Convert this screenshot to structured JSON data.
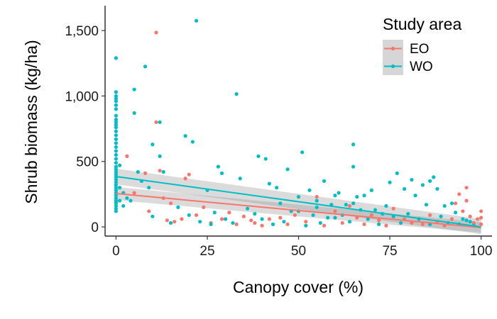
{
  "chart_data": {
    "type": "scatter",
    "xlabel": "Canopy cover (%)",
    "ylabel": "Shrub biomass (kg/ha)",
    "xlim": [
      -3,
      103
    ],
    "ylim": [
      -70,
      1690
    ],
    "x_ticks": [
      0,
      25,
      50,
      75,
      100
    ],
    "x_tick_labels": [
      "0",
      "25",
      "50",
      "75",
      "100"
    ],
    "y_ticks": [
      0,
      500,
      1000,
      1500
    ],
    "y_tick_labels": [
      "0",
      "500",
      "1,000",
      "1,500"
    ],
    "grid": false,
    "legend": {
      "title": "Study area",
      "position": "top-right"
    },
    "series": [
      {
        "name": "EO",
        "color": "#F8766D",
        "points": [
          [
            11,
            1485
          ],
          [
            11,
            800
          ],
          [
            12,
            430
          ],
          [
            19,
            370
          ],
          [
            20,
            400
          ],
          [
            3,
            540
          ],
          [
            8,
            410
          ],
          [
            13,
            220
          ],
          [
            15,
            180
          ],
          [
            5,
            260
          ],
          [
            1,
            300
          ],
          [
            0,
            190
          ],
          [
            9,
            120
          ],
          [
            14,
            50
          ],
          [
            16,
            40
          ],
          [
            18,
            60
          ],
          [
            22,
            90
          ],
          [
            24,
            150
          ],
          [
            26,
            30
          ],
          [
            29,
            60
          ],
          [
            31,
            110
          ],
          [
            33,
            20
          ],
          [
            35,
            80
          ],
          [
            37,
            50
          ],
          [
            38,
            30
          ],
          [
            40,
            10
          ],
          [
            42,
            60
          ],
          [
            45,
            70
          ],
          [
            47,
            20
          ],
          [
            49,
            90
          ],
          [
            52,
            40
          ],
          [
            55,
            230
          ],
          [
            57,
            10
          ],
          [
            60,
            120
          ],
          [
            62,
            30
          ],
          [
            64,
            160
          ],
          [
            66,
            70
          ],
          [
            68,
            20
          ],
          [
            70,
            90
          ],
          [
            72,
            50
          ],
          [
            74,
            10
          ],
          [
            76,
            140
          ],
          [
            79,
            60
          ],
          [
            81,
            30
          ],
          [
            84,
            20
          ],
          [
            86,
            90
          ],
          [
            88,
            40
          ],
          [
            90,
            10
          ],
          [
            92,
            60
          ],
          [
            93,
            180
          ],
          [
            94,
            250
          ],
          [
            95,
            120
          ],
          [
            96,
            300
          ],
          [
            97,
            80
          ],
          [
            98,
            30
          ],
          [
            99,
            60
          ],
          [
            100,
            120
          ],
          [
            100,
            20
          ],
          [
            100,
            70
          ],
          [
            96,
            200
          ]
        ],
        "fit": {
          "x": [
            0,
            100
          ],
          "y": [
            255,
            -5
          ]
        },
        "ci": {
          "x": [
            0,
            100
          ],
          "upper": [
            305,
            35
          ],
          "lower": [
            205,
            -45
          ]
        }
      },
      {
        "name": "WO",
        "color": "#00BFC4",
        "points": [
          [
            22,
            1575
          ],
          [
            0,
            1290
          ],
          [
            8,
            1225
          ],
          [
            5,
            1050
          ],
          [
            0,
            1030
          ],
          [
            0,
            1000
          ],
          [
            0,
            980
          ],
          [
            33,
            1015
          ],
          [
            0,
            960
          ],
          [
            0,
            930
          ],
          [
            0,
            900
          ],
          [
            0,
            850
          ],
          [
            0,
            820
          ],
          [
            0,
            800
          ],
          [
            0,
            780
          ],
          [
            0,
            760
          ],
          [
            0,
            730
          ],
          [
            0,
            700
          ],
          [
            0,
            670
          ],
          [
            0,
            640
          ],
          [
            0,
            610
          ],
          [
            0,
            580
          ],
          [
            0,
            550
          ],
          [
            0,
            520
          ],
          [
            0,
            490
          ],
          [
            0,
            460
          ],
          [
            0,
            440
          ],
          [
            0,
            420
          ],
          [
            0,
            400
          ],
          [
            0,
            380
          ],
          [
            0,
            360
          ],
          [
            0,
            340
          ],
          [
            0,
            320
          ],
          [
            0,
            300
          ],
          [
            0,
            280
          ],
          [
            0,
            260
          ],
          [
            0,
            240
          ],
          [
            0,
            220
          ],
          [
            0,
            200
          ],
          [
            0,
            180
          ],
          [
            0,
            160
          ],
          [
            0,
            140
          ],
          [
            0,
            120
          ],
          [
            1,
            470
          ],
          [
            1,
            300
          ],
          [
            1,
            200
          ],
          [
            2,
            260
          ],
          [
            2,
            160
          ],
          [
            3,
            220
          ],
          [
            4,
            200
          ],
          [
            5,
            870
          ],
          [
            6,
            420
          ],
          [
            7,
            350
          ],
          [
            9,
            300
          ],
          [
            12,
            540
          ],
          [
            12,
            800
          ],
          [
            10,
            630
          ],
          [
            13,
            420
          ],
          [
            19,
            695
          ],
          [
            21,
            650
          ],
          [
            25,
            280
          ],
          [
            28,
            460
          ],
          [
            29,
            410
          ],
          [
            34,
            370
          ],
          [
            39,
            540
          ],
          [
            41,
            520
          ],
          [
            42,
            330
          ],
          [
            44,
            300
          ],
          [
            47,
            440
          ],
          [
            51,
            570
          ],
          [
            53,
            280
          ],
          [
            55,
            200
          ],
          [
            57,
            350
          ],
          [
            59,
            170
          ],
          [
            61,
            260
          ],
          [
            63,
            170
          ],
          [
            65,
            630
          ],
          [
            65,
            460
          ],
          [
            66,
            230
          ],
          [
            68,
            240
          ],
          [
            70,
            280
          ],
          [
            71,
            130
          ],
          [
            73,
            100
          ],
          [
            75,
            340
          ],
          [
            77,
            410
          ],
          [
            79,
            290
          ],
          [
            81,
            360
          ],
          [
            82,
            240
          ],
          [
            84,
            320
          ],
          [
            85,
            170
          ],
          [
            86,
            350
          ],
          [
            87,
            380
          ],
          [
            88,
            290
          ],
          [
            90,
            160
          ],
          [
            92,
            180
          ],
          [
            95,
            60
          ],
          [
            97,
            40
          ],
          [
            10,
            80
          ],
          [
            15,
            30
          ],
          [
            17,
            150
          ],
          [
            20,
            90
          ],
          [
            23,
            40
          ],
          [
            26,
            20
          ],
          [
            27,
            110
          ],
          [
            30,
            60
          ],
          [
            32,
            30
          ],
          [
            36,
            140
          ],
          [
            38,
            100
          ],
          [
            40,
            60
          ],
          [
            43,
            20
          ],
          [
            45,
            180
          ],
          [
            46,
            40
          ],
          [
            48,
            120
          ],
          [
            50,
            230
          ],
          [
            52,
            10
          ],
          [
            54,
            90
          ],
          [
            56,
            30
          ],
          [
            58,
            70
          ],
          [
            60,
            240
          ],
          [
            62,
            90
          ],
          [
            64,
            40
          ],
          [
            67,
            130
          ],
          [
            69,
            60
          ],
          [
            72,
            20
          ],
          [
            74,
            160
          ],
          [
            76,
            80
          ],
          [
            78,
            30
          ],
          [
            80,
            100
          ],
          [
            83,
            60
          ],
          [
            86,
            20
          ],
          [
            89,
            80
          ],
          [
            91,
            30
          ],
          [
            93,
            110
          ],
          [
            94,
            20
          ],
          [
            96,
            50
          ],
          [
            98,
            10
          ],
          [
            50,
            120
          ],
          [
            55,
            150
          ],
          [
            60,
            70
          ],
          [
            65,
            180
          ]
        ],
        "fit": {
          "x": [
            0,
            100
          ],
          "y": [
            385,
            0
          ]
        },
        "ci": {
          "x": [
            0,
            100
          ],
          "upper": [
            445,
            60
          ],
          "lower": [
            325,
            -55
          ]
        }
      }
    ]
  }
}
